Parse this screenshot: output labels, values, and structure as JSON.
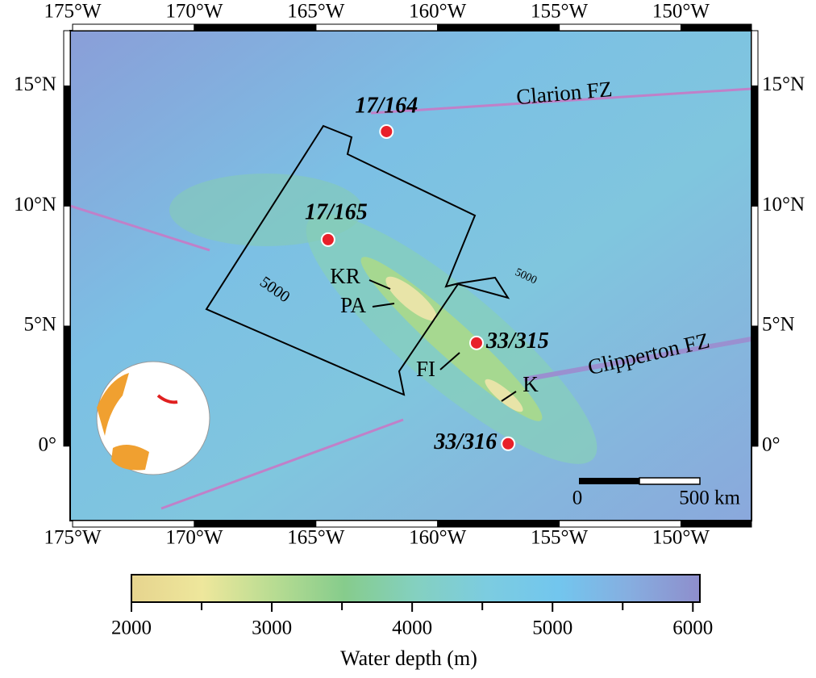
{
  "map": {
    "lon_range": [
      -175.1,
      -147.1
    ],
    "lat_range": [
      -3.1,
      17.3
    ],
    "lon_ticks": [
      {
        "value": -175,
        "label": "175°W"
      },
      {
        "value": -170,
        "label": "170°W"
      },
      {
        "value": -165,
        "label": "165°W"
      },
      {
        "value": -160,
        "label": "160°W"
      },
      {
        "value": -155,
        "label": "155°W"
      },
      {
        "value": -150,
        "label": "150°W"
      }
    ],
    "lat_ticks": [
      {
        "value": 0,
        "label": "0°"
      },
      {
        "value": 5,
        "label": "5°N"
      },
      {
        "value": 10,
        "label": "10°N"
      },
      {
        "value": 15,
        "label": "15°N"
      }
    ],
    "sites": [
      {
        "label": "17/164",
        "lon": -162.1,
        "lat": 13.1
      },
      {
        "label": "17/165",
        "lon": -164.5,
        "lat": 8.6
      },
      {
        "label": "33/315",
        "lon": -158.4,
        "lat": 4.3
      },
      {
        "label": "33/316",
        "lon": -157.1,
        "lat": 0.1
      }
    ],
    "features": [
      "Clarion FZ",
      "Clipperton FZ",
      "KR",
      "PA",
      "FI",
      "K"
    ],
    "contour_labels": [
      "5000",
      "5000"
    ],
    "scale_bar": {
      "start": "0",
      "end": "500 km"
    }
  },
  "colorbar": {
    "title": "Water depth (m)",
    "range": [
      2000,
      6050
    ],
    "ticks": [
      2000,
      3000,
      4000,
      5000,
      6000
    ],
    "colors": [
      "#e6d48e",
      "#eee79c",
      "#b8dc92",
      "#86cc8c",
      "#84d0c0",
      "#7ccce0",
      "#72c6ee",
      "#86aee0",
      "#8e8ecc"
    ]
  }
}
